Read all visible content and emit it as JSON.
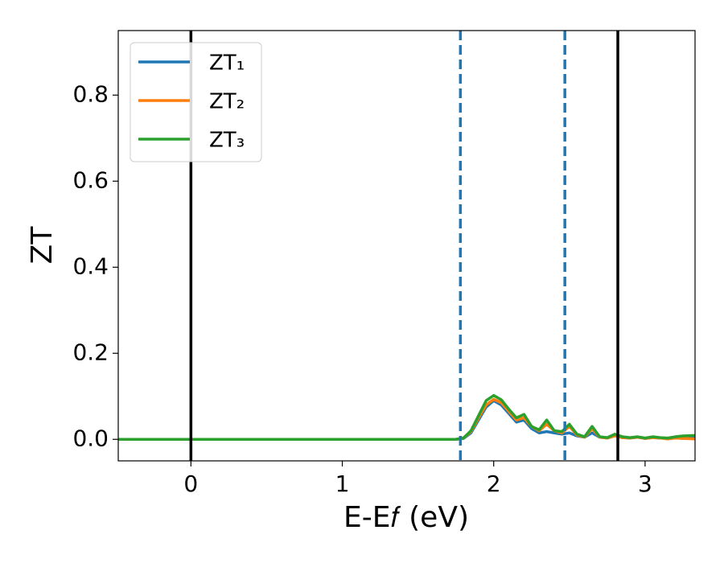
{
  "chart_data": {
    "type": "line",
    "xlabel": "E-E𝑓 (eV)",
    "ylabel": "ZT",
    "xlim": [
      -0.48,
      3.33
    ],
    "ylim": [
      -0.05,
      0.95
    ],
    "xticks": [
      0,
      1,
      2,
      3
    ],
    "yticks": [
      {
        "value": 0,
        "label": "0.0"
      },
      0.2,
      0.4,
      0.6,
      0.8
    ],
    "legend": "upper left",
    "x": [
      -0.48,
      0,
      0.5,
      1.0,
      1.5,
      1.75,
      1.8,
      1.85,
      1.9,
      1.95,
      2.0,
      2.05,
      2.1,
      2.15,
      2.2,
      2.25,
      2.3,
      2.35,
      2.4,
      2.45,
      2.5,
      2.55,
      2.6,
      2.65,
      2.7,
      2.75,
      2.8,
      2.85,
      2.9,
      2.95,
      3.0,
      3.05,
      3.1,
      3.15,
      3.2,
      3.25,
      3.33
    ],
    "series": [
      {
        "name": "ZT₁",
        "color": "#1f77b4",
        "values": [
          0,
          0,
          0,
          0,
          0,
          0,
          0.002,
          0.015,
          0.045,
          0.075,
          0.09,
          0.08,
          0.06,
          0.04,
          0.045,
          0.025,
          0.015,
          0.018,
          0.015,
          0.012,
          0.015,
          0.008,
          0.005,
          0.015,
          0.005,
          0.003,
          0.008,
          0.004,
          0.003,
          0.005,
          0.002,
          0.004,
          0.003,
          0.002,
          0.004,
          0.002,
          0.004
        ]
      },
      {
        "name": "ZT₂",
        "color": "#ff7f0e",
        "values": [
          0,
          0,
          0,
          0,
          0,
          0,
          0.003,
          0.018,
          0.05,
          0.08,
          0.093,
          0.085,
          0.065,
          0.045,
          0.05,
          0.03,
          0.02,
          0.035,
          0.02,
          0.015,
          0.03,
          0.01,
          0.005,
          0.025,
          0.005,
          0.003,
          0.008,
          0.004,
          0.003,
          0.005,
          0.002,
          0.004,
          0.003,
          0.001,
          0.003,
          0.002,
          0.001
        ]
      },
      {
        "name": "ZT₃",
        "color": "#2ca02c",
        "values": [
          0,
          0,
          0,
          0,
          0,
          0,
          0.003,
          0.02,
          0.055,
          0.09,
          0.102,
          0.092,
          0.07,
          0.05,
          0.058,
          0.03,
          0.022,
          0.045,
          0.02,
          0.018,
          0.035,
          0.012,
          0.006,
          0.03,
          0.006,
          0.004,
          0.012,
          0.006,
          0.004,
          0.006,
          0.003,
          0.006,
          0.004,
          0.003,
          0.006,
          0.008,
          0.009
        ]
      }
    ],
    "vlines": [
      {
        "x": 0,
        "color": "#000000",
        "style": "solid"
      },
      {
        "x": 1.78,
        "color": "#1f77b4",
        "style": "dashed"
      },
      {
        "x": 2.47,
        "color": "#1f77b4",
        "style": "dashed"
      },
      {
        "x": 2.82,
        "color": "#000000",
        "style": "solid"
      }
    ]
  }
}
